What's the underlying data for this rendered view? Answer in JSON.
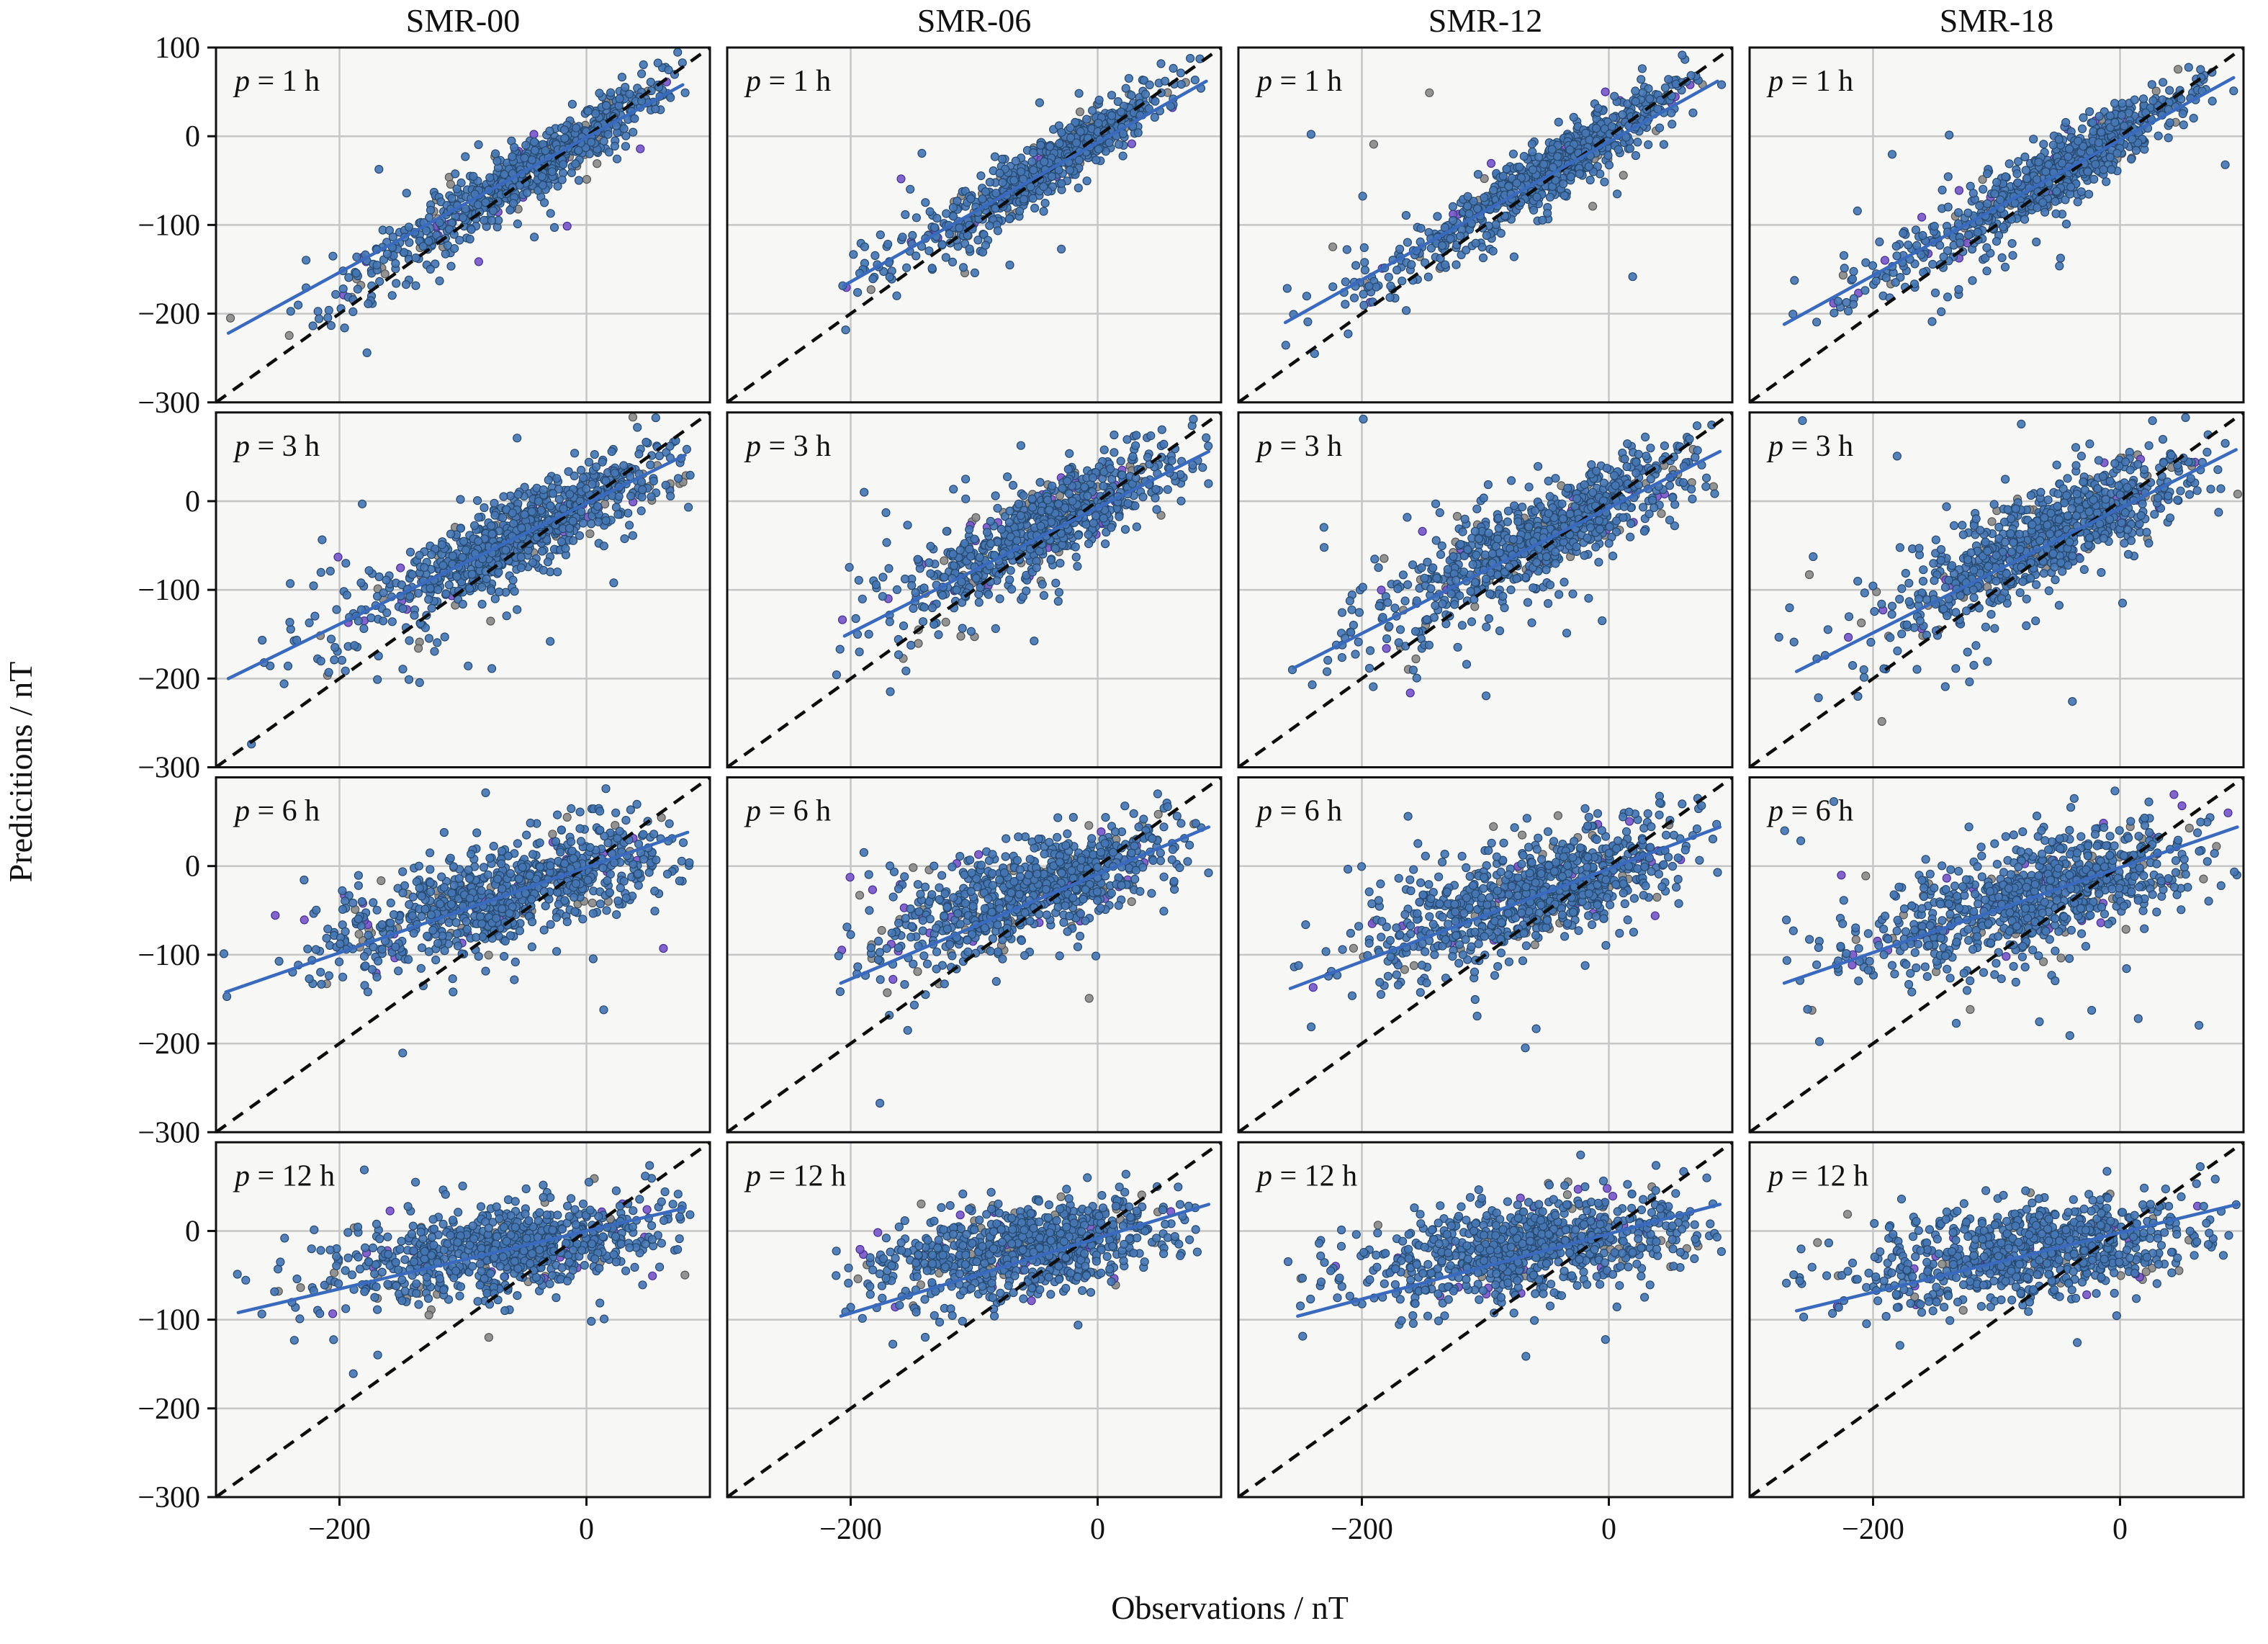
{
  "chart_data": {
    "type": "scatter",
    "columns": [
      "SMR-00",
      "SMR-06",
      "SMR-12",
      "SMR-18"
    ],
    "rows": [
      "p = 1 h",
      "p = 3 h",
      "p = 6 h",
      "p = 12 h"
    ],
    "xlabel": "Observations / nT",
    "ylabel": "Predicitions / nT",
    "xlim": [
      -300,
      100
    ],
    "ylim": [
      -300,
      100
    ],
    "xticks": [
      -200,
      0
    ],
    "yticks_first_row": [
      100,
      0,
      -100,
      -200,
      -300
    ],
    "yticks_other_rows": [
      0,
      -100,
      -200,
      -300
    ],
    "grid_x": [
      -200,
      0
    ],
    "grid_y": [
      0,
      -100,
      -200
    ],
    "identity_line": {
      "style": "dashed",
      "from": [
        -300,
        -300
      ],
      "to": [
        100,
        100
      ]
    },
    "colors": {
      "figure_bg": "#ffffff",
      "plot_bg": "#f7f7f5",
      "grid": "#c6c6c6",
      "axes": "#111111",
      "identity": "#0d0d0d",
      "fit_line": "#3a6abe",
      "points": {
        "blue": {
          "fill": "#4576b4",
          "edge": "#27496e"
        },
        "gray": {
          "fill": "#8a8a8a",
          "edge": "#565656"
        },
        "purple": {
          "fill": "#7757c8",
          "edge": "#453093"
        }
      }
    },
    "subplots": [
      {
        "column": "SMR-00",
        "row_label": "p = 1 h",
        "xclip": [
          -296,
          85
        ],
        "fit_line": {
          "x": [
            -290,
            78
          ],
          "y": [
            -222,
            58
          ]
        },
        "clouds": [
          {
            "n": 620,
            "cx": -35,
            "cy": -28,
            "sx": 50,
            "sy": 46,
            "rho": 0.93
          },
          {
            "n": 130,
            "cx": -140,
            "cy": -122,
            "sx": 48,
            "sy": 44,
            "rho": 0.88
          },
          {
            "n": 28,
            "cx": -110,
            "cy": -95,
            "sx": 95,
            "sy": 85,
            "rho": 0.5
          }
        ]
      },
      {
        "column": "SMR-06",
        "row_label": "p = 1 h",
        "xclip": [
          -212,
          92
        ],
        "fit_line": {
          "x": [
            -205,
            88
          ],
          "y": [
            -168,
            62
          ]
        },
        "clouds": [
          {
            "n": 600,
            "cx": -30,
            "cy": -24,
            "sx": 46,
            "sy": 44,
            "rho": 0.93
          },
          {
            "n": 110,
            "cx": -120,
            "cy": -105,
            "sx": 45,
            "sy": 42,
            "rho": 0.85
          },
          {
            "n": 26,
            "cx": -100,
            "cy": -85,
            "sx": 80,
            "sy": 75,
            "rho": 0.5
          }
        ]
      },
      {
        "column": "SMR-12",
        "row_label": "p = 1 h",
        "xclip": [
          -264,
          92
        ],
        "fit_line": {
          "x": [
            -262,
            88
          ],
          "y": [
            -210,
            62
          ]
        },
        "clouds": [
          {
            "n": 620,
            "cx": -35,
            "cy": -28,
            "sx": 50,
            "sy": 46,
            "rho": 0.92
          },
          {
            "n": 125,
            "cx": -135,
            "cy": -118,
            "sx": 50,
            "sy": 45,
            "rho": 0.85
          },
          {
            "n": 28,
            "cx": -110,
            "cy": -95,
            "sx": 90,
            "sy": 80,
            "rho": 0.45
          }
        ]
      },
      {
        "column": "SMR-18",
        "row_label": "p = 1 h",
        "xclip": [
          -278,
          96
        ],
        "fit_line": {
          "x": [
            -272,
            92
          ],
          "y": [
            -212,
            66
          ]
        },
        "clouds": [
          {
            "n": 640,
            "cx": -38,
            "cy": -30,
            "sx": 52,
            "sy": 47,
            "rho": 0.92
          },
          {
            "n": 125,
            "cx": -140,
            "cy": -120,
            "sx": 52,
            "sy": 46,
            "rho": 0.84
          },
          {
            "n": 28,
            "cx": -115,
            "cy": -98,
            "sx": 92,
            "sy": 82,
            "rho": 0.45
          }
        ]
      },
      {
        "column": "SMR-00",
        "row_label": "p = 3 h",
        "xclip": [
          -296,
          85
        ],
        "fit_line": {
          "x": [
            -290,
            80
          ],
          "y": [
            -200,
            52
          ]
        },
        "clouds": [
          {
            "n": 680,
            "cx": -42,
            "cy": -28,
            "sx": 56,
            "sy": 44,
            "rho": 0.84
          },
          {
            "n": 130,
            "cx": -145,
            "cy": -112,
            "sx": 52,
            "sy": 46,
            "rho": 0.66
          },
          {
            "n": 32,
            "cx": -115,
            "cy": -85,
            "sx": 95,
            "sy": 85,
            "rho": 0.3
          }
        ]
      },
      {
        "column": "SMR-06",
        "row_label": "p = 3 h",
        "xclip": [
          -212,
          92
        ],
        "fit_line": {
          "x": [
            -205,
            90
          ],
          "y": [
            -152,
            56
          ]
        },
        "clouds": [
          {
            "n": 650,
            "cx": -35,
            "cy": -24,
            "sx": 50,
            "sy": 42,
            "rho": 0.84
          },
          {
            "n": 115,
            "cx": -122,
            "cy": -92,
            "sx": 46,
            "sy": 44,
            "rho": 0.6
          },
          {
            "n": 30,
            "cx": -105,
            "cy": -75,
            "sx": 82,
            "sy": 78,
            "rho": 0.3
          }
        ]
      },
      {
        "column": "SMR-12",
        "row_label": "p = 3 h",
        "xclip": [
          -264,
          92
        ],
        "fit_line": {
          "x": [
            -255,
            90
          ],
          "y": [
            -188,
            56
          ]
        },
        "clouds": [
          {
            "n": 680,
            "cx": -42,
            "cy": -28,
            "sx": 55,
            "sy": 44,
            "rho": 0.82
          },
          {
            "n": 125,
            "cx": -140,
            "cy": -105,
            "sx": 50,
            "sy": 46,
            "rho": 0.6
          },
          {
            "n": 32,
            "cx": -112,
            "cy": -82,
            "sx": 92,
            "sy": 82,
            "rho": 0.28
          }
        ]
      },
      {
        "column": "SMR-18",
        "row_label": "p = 3 h",
        "xclip": [
          -278,
          96
        ],
        "fit_line": {
          "x": [
            -262,
            94
          ],
          "y": [
            -192,
            58
          ]
        },
        "clouds": [
          {
            "n": 700,
            "cx": -45,
            "cy": -30,
            "sx": 57,
            "sy": 45,
            "rho": 0.8
          },
          {
            "n": 125,
            "cx": -145,
            "cy": -108,
            "sx": 52,
            "sy": 47,
            "rho": 0.58
          },
          {
            "n": 32,
            "cx": -118,
            "cy": -85,
            "sx": 95,
            "sy": 85,
            "rho": 0.26
          }
        ]
      },
      {
        "column": "SMR-00",
        "row_label": "p = 6 h",
        "xclip": [
          -296,
          85
        ],
        "fit_line": {
          "x": [
            -292,
            82
          ],
          "y": [
            -142,
            38
          ]
        },
        "clouds": [
          {
            "n": 720,
            "cx": -52,
            "cy": -24,
            "sx": 60,
            "sy": 36,
            "rho": 0.62
          },
          {
            "n": 115,
            "cx": -155,
            "cy": -80,
            "sx": 52,
            "sy": 36,
            "rho": 0.38
          },
          {
            "n": 30,
            "cx": -125,
            "cy": -75,
            "sx": 95,
            "sy": 70,
            "rho": 0.15
          }
        ]
      },
      {
        "column": "SMR-06",
        "row_label": "p = 6 h",
        "xclip": [
          -212,
          92
        ],
        "fit_line": {
          "x": [
            -208,
            90
          ],
          "y": [
            -132,
            44
          ]
        },
        "clouds": [
          {
            "n": 680,
            "cx": -45,
            "cy": -22,
            "sx": 54,
            "sy": 35,
            "rho": 0.62
          },
          {
            "n": 105,
            "cx": -128,
            "cy": -68,
            "sx": 46,
            "sy": 36,
            "rho": 0.35
          },
          {
            "n": 28,
            "cx": -108,
            "cy": -65,
            "sx": 82,
            "sy": 66,
            "rho": 0.15
          }
        ]
      },
      {
        "column": "SMR-12",
        "row_label": "p = 6 h",
        "xclip": [
          -264,
          92
        ],
        "fit_line": {
          "x": [
            -258,
            90
          ],
          "y": [
            -138,
            44
          ]
        },
        "clouds": [
          {
            "n": 720,
            "cx": -50,
            "cy": -24,
            "sx": 58,
            "sy": 36,
            "rho": 0.6
          },
          {
            "n": 112,
            "cx": -148,
            "cy": -75,
            "sx": 50,
            "sy": 36,
            "rho": 0.35
          },
          {
            "n": 30,
            "cx": -120,
            "cy": -70,
            "sx": 92,
            "sy": 68,
            "rho": 0.14
          }
        ]
      },
      {
        "column": "SMR-18",
        "row_label": "p = 6 h",
        "xclip": [
          -278,
          96
        ],
        "fit_line": {
          "x": [
            -272,
            95
          ],
          "y": [
            -132,
            44
          ]
        },
        "clouds": [
          {
            "n": 740,
            "cx": -55,
            "cy": -25,
            "sx": 60,
            "sy": 37,
            "rho": 0.58
          },
          {
            "n": 112,
            "cx": -152,
            "cy": -78,
            "sx": 52,
            "sy": 37,
            "rho": 0.34
          },
          {
            "n": 30,
            "cx": -125,
            "cy": -72,
            "sx": 95,
            "sy": 70,
            "rho": 0.14
          }
        ]
      },
      {
        "column": "SMR-00",
        "row_label": "p = 12 h",
        "xclip": [
          -296,
          85
        ],
        "fit_line": {
          "x": [
            -282,
            80
          ],
          "y": [
            -92,
            26
          ]
        },
        "clouds": [
          {
            "n": 700,
            "cx": -55,
            "cy": -18,
            "sx": 62,
            "sy": 28,
            "rho": 0.38
          },
          {
            "n": 95,
            "cx": -158,
            "cy": -48,
            "sx": 50,
            "sy": 28,
            "rho": 0.22
          },
          {
            "n": 30,
            "cx": -135,
            "cy": -52,
            "sx": 92,
            "sy": 54,
            "rho": 0.1
          }
        ]
      },
      {
        "column": "SMR-06",
        "row_label": "p = 12 h",
        "xclip": [
          -212,
          92
        ],
        "fit_line": {
          "x": [
            -208,
            90
          ],
          "y": [
            -96,
            30
          ]
        },
        "clouds": [
          {
            "n": 680,
            "cx": -48,
            "cy": -16,
            "sx": 56,
            "sy": 27,
            "rho": 0.38
          },
          {
            "n": 90,
            "cx": -130,
            "cy": -45,
            "sx": 46,
            "sy": 28,
            "rho": 0.2
          },
          {
            "n": 28,
            "cx": -112,
            "cy": -48,
            "sx": 80,
            "sy": 52,
            "rho": 0.1
          }
        ]
      },
      {
        "column": "SMR-12",
        "row_label": "p = 12 h",
        "xclip": [
          -264,
          92
        ],
        "fit_line": {
          "x": [
            -252,
            90
          ],
          "y": [
            -96,
            30
          ]
        },
        "clouds": [
          {
            "n": 700,
            "cx": -52,
            "cy": -17,
            "sx": 60,
            "sy": 28,
            "rho": 0.36
          },
          {
            "n": 92,
            "cx": -148,
            "cy": -46,
            "sx": 50,
            "sy": 28,
            "rho": 0.2
          },
          {
            "n": 30,
            "cx": -125,
            "cy": -50,
            "sx": 90,
            "sy": 52,
            "rho": 0.1
          }
        ]
      },
      {
        "column": "SMR-18",
        "row_label": "p = 12 h",
        "xclip": [
          -278,
          96
        ],
        "fit_line": {
          "x": [
            -262,
            95
          ],
          "y": [
            -90,
            30
          ]
        },
        "clouds": [
          {
            "n": 720,
            "cx": -58,
            "cy": -18,
            "sx": 62,
            "sy": 28,
            "rho": 0.34
          },
          {
            "n": 92,
            "cx": -152,
            "cy": -48,
            "sx": 52,
            "sy": 28,
            "rho": 0.2
          },
          {
            "n": 30,
            "cx": -128,
            "cy": -52,
            "sx": 92,
            "sy": 54,
            "rho": 0.1
          }
        ]
      }
    ]
  }
}
